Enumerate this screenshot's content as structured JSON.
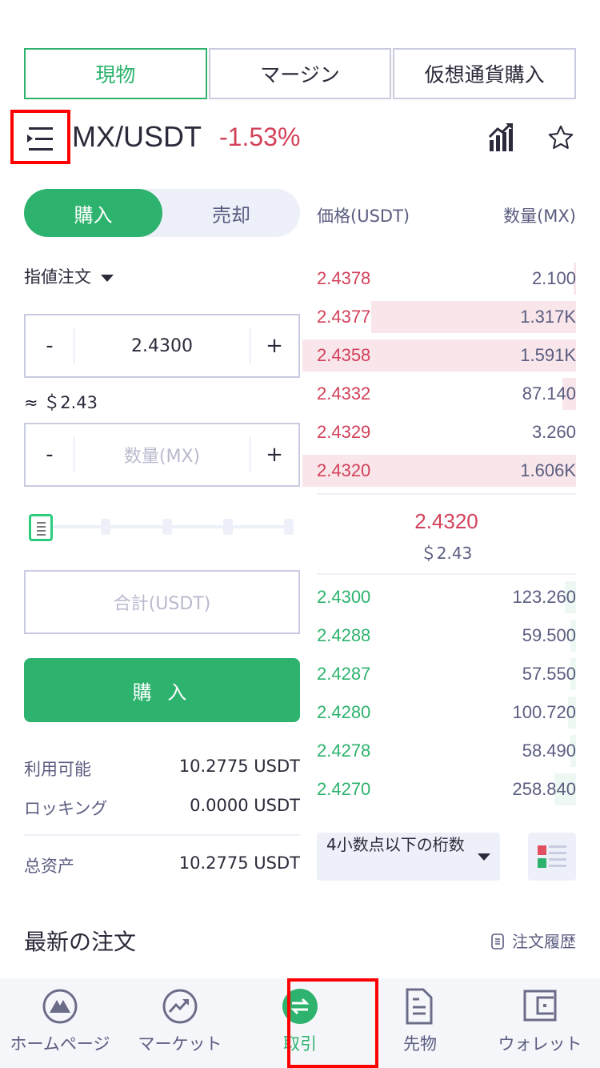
{
  "tabs": [
    {
      "label": "現物",
      "active": true
    },
    {
      "label": "マージン"
    },
    {
      "label": "仮想通貨購入"
    }
  ],
  "header": {
    "pair": "MX/USDT",
    "change": "-1.53%",
    "icons": [
      "menu-icon",
      "chart-icon",
      "star-icon"
    ]
  },
  "side": {
    "buy": "購入",
    "sell": "売却",
    "active": "buy"
  },
  "book_header": {
    "price": "価格(USDT)",
    "qty": "数量(MX)"
  },
  "order_type": "指値注文",
  "price_input": {
    "value": "2.4300",
    "minus": "-",
    "plus": "+"
  },
  "approx": "≈ ＄2.43",
  "qty_input": {
    "placeholder": "数量(MX)",
    "minus": "-",
    "plus": "+"
  },
  "slider": {
    "value_percent": 0
  },
  "total_input": {
    "placeholder": "合計(USDT)"
  },
  "buy_button": "購 入",
  "balances": [
    {
      "label": "利用可能",
      "value": "10.2775 USDT"
    },
    {
      "label": "ロッキング",
      "value": "0.0000 USDT"
    },
    {
      "label": "总资产",
      "value": "10.2775 USDT"
    }
  ],
  "asks": [
    {
      "price": "2.4378",
      "qty": "2.100",
      "depth": 0.01
    },
    {
      "price": "2.4377",
      "qty": "1.317K",
      "depth": 0.75
    },
    {
      "price": "2.4358",
      "qty": "1.591K",
      "depth": 1.0
    },
    {
      "price": "2.4332",
      "qty": "87.140",
      "depth": 0.05
    },
    {
      "price": "2.4329",
      "qty": "3.260",
      "depth": 0
    },
    {
      "price": "2.4320",
      "qty": "1.606K",
      "depth": 1.0
    }
  ],
  "last": {
    "price": "2.4320",
    "usd": "＄2.43"
  },
  "bids": [
    {
      "price": "2.4300",
      "qty": "123.260",
      "depth": 0.04
    },
    {
      "price": "2.4288",
      "qty": "59.500",
      "depth": 0.02
    },
    {
      "price": "2.4287",
      "qty": "57.550",
      "depth": 0.02
    },
    {
      "price": "2.4280",
      "qty": "100.720",
      "depth": 0.03
    },
    {
      "price": "2.4278",
      "qty": "58.490",
      "depth": 0.02
    },
    {
      "price": "2.4270",
      "qty": "258.840",
      "depth": 0.08
    }
  ],
  "decimals": "4小数点以下の桁数",
  "recent_orders": {
    "title": "最新の注文",
    "history": "注文履歴"
  },
  "nav": [
    {
      "label": "ホームページ",
      "icon": "home-mountain-icon"
    },
    {
      "label": "マーケット",
      "icon": "market-trend-icon"
    },
    {
      "label": "取引",
      "icon": "trade-swap-icon",
      "active": true
    },
    {
      "label": "先物",
      "icon": "futures-document-icon"
    },
    {
      "label": "ウォレット",
      "icon": "wallet-icon"
    }
  ],
  "colors": {
    "green": "#2db36e",
    "red": "#d2415a",
    "text": "#2a2a3a",
    "muted": "#5a5d80"
  }
}
